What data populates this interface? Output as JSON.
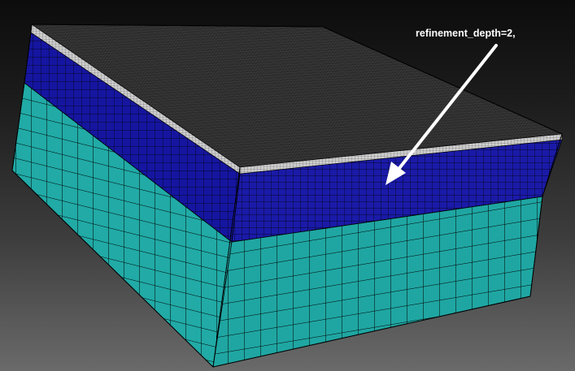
{
  "annotation": {
    "text": "refinement_depth=2,"
  },
  "colors": {
    "background_top": "#0c0c0c",
    "background_bottom": "#6a6a6a",
    "top_face": "#2b2b2b",
    "fine_surface_layer": "#cfcfcf",
    "refined_layer": "#1a1aa8",
    "refined_layer_dark": "#101085",
    "coarse_layer": "#21aaa6",
    "mesh_line": "#000000",
    "arrow": "#ffffff"
  }
}
